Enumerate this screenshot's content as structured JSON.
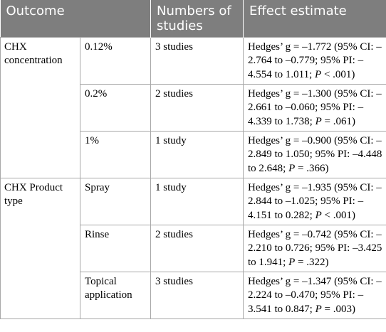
{
  "headers": {
    "outcome": "Outcome",
    "studies": "Numbers of studies",
    "effect": "Effect estimate"
  },
  "groups": [
    {
      "outcome": "CHX concentration",
      "rows": [
        {
          "sub": "0.12%",
          "studies": "3 studies",
          "effect": {
            "pre": "Hedges’ g = –1.772 (95% CI: –2.764 to –0.779; 95% PI: –4.554 to 1.011; ",
            "p_label": "P",
            "post": " < .001)"
          }
        },
        {
          "sub": "0.2%",
          "studies": "2 studies",
          "effect": {
            "pre": "Hedges’ g = –1.300 (95% CI: –2.661 to –0.060; 95% PI: –4.339 to 1.738; ",
            "p_label": "P",
            "post": " = .061)"
          }
        },
        {
          "sub": "1%",
          "studies": "1 study",
          "effect": {
            "pre": "Hedges’ g = –0.900 (95% CI: –2.849 to 1.050; 95% PI: –4.448 to 2.648; ",
            "p_label": "P",
            "post": " = .366)"
          }
        }
      ]
    },
    {
      "outcome": "CHX Product type",
      "rows": [
        {
          "sub": "Spray",
          "studies": "1 study",
          "effect": {
            "pre": "Hedges’ g = –1.935 (95% CI: –2.844 to –1.025; 95% PI: –4.151 to 0.282; ",
            "p_label": "P",
            "post": " < .001)"
          }
        },
        {
          "sub": "Rinse",
          "studies": "2 studies",
          "effect": {
            "pre": "Hedges’ g = –0.742 (95% CI: –2.210 to 0.726; 95% PI: –3.425 to 1.941; ",
            "p_label": "P",
            "post": " = .322)"
          }
        },
        {
          "sub": "Topical application",
          "studies": "3 studies",
          "effect": {
            "pre": "Hedges’ g = –1.347 (95% CI: –2.224 to –0.470; 95% PI: –3.541 to 0.847; ",
            "p_label": "P",
            "post": " = .003)"
          }
        }
      ]
    }
  ]
}
